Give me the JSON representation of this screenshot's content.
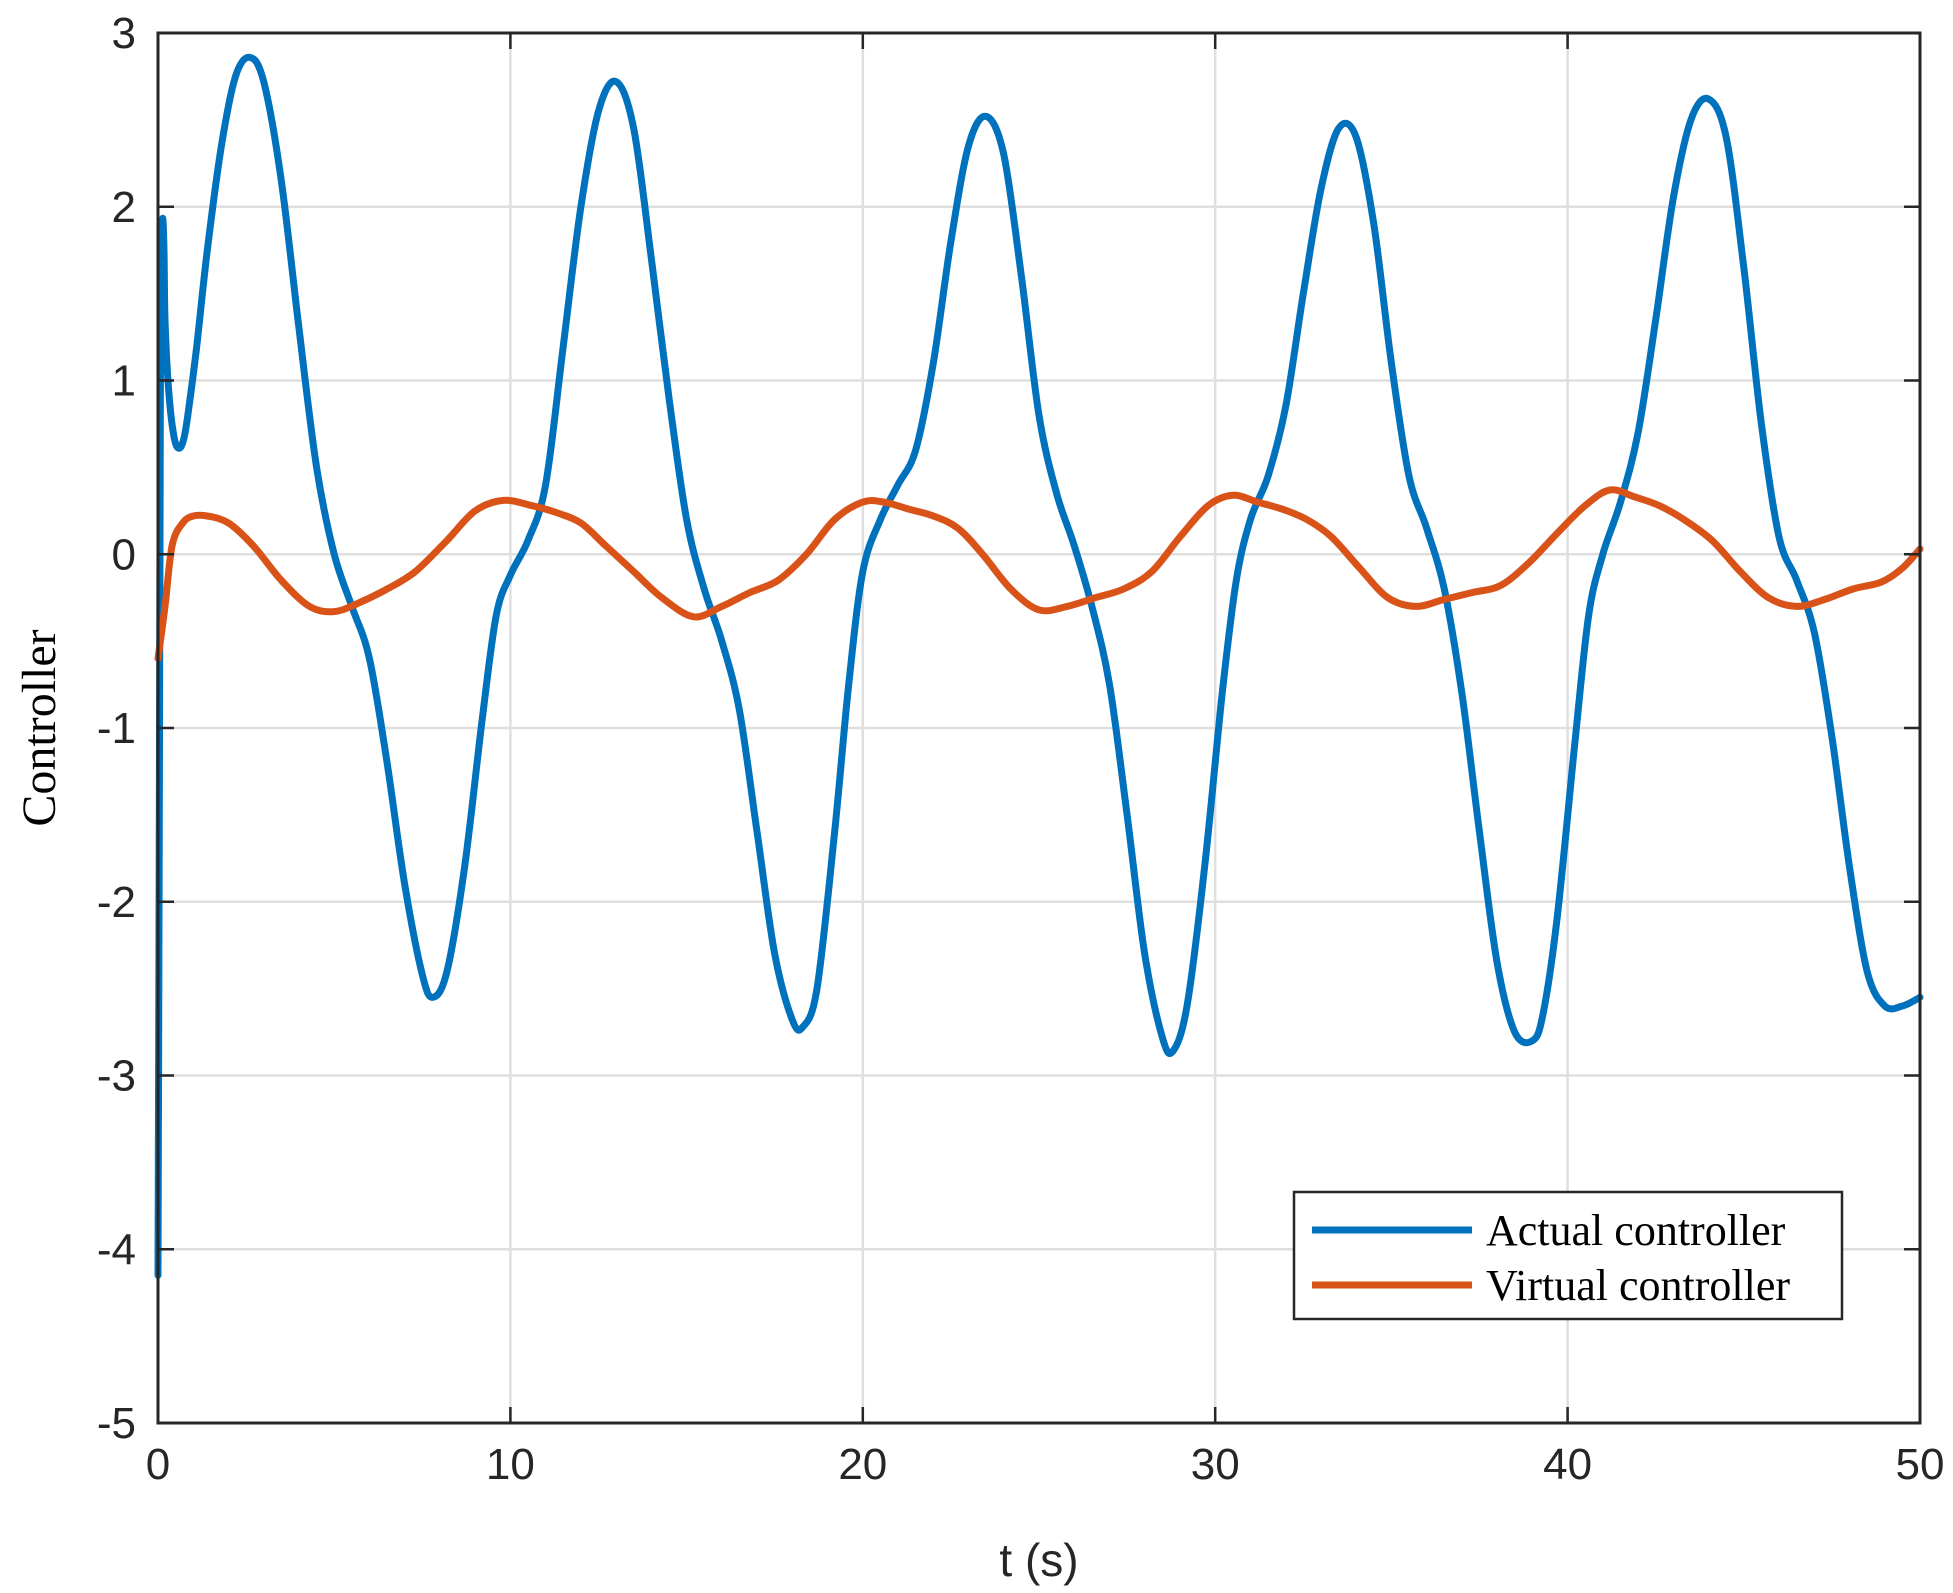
{
  "chart_data": {
    "type": "line",
    "title": "",
    "xlabel": "t (s)",
    "ylabel": "Controller",
    "xlim": [
      0,
      50
    ],
    "ylim": [
      -5,
      3
    ],
    "xticks": [
      0,
      10,
      20,
      30,
      40,
      50
    ],
    "yticks": [
      -5,
      -4,
      -3,
      -2,
      -1,
      0,
      1,
      2,
      3
    ],
    "grid": true,
    "legend_position": "bottom-right",
    "series": [
      {
        "name": "Actual controller",
        "color": "#0072BD",
        "x": [
          0,
          0.04,
          0.07,
          0.1,
          0.13,
          0.17,
          0.2,
          0.3,
          0.45,
          0.6,
          0.75,
          0.9,
          1.1,
          1.4,
          1.8,
          2.2,
          2.6,
          3.0,
          3.5,
          4.0,
          4.5,
          5.0,
          5.5,
          6.0,
          6.5,
          7.0,
          7.5,
          7.8,
          8.2,
          8.7,
          9.2,
          9.6,
          10.0,
          10.5,
          11.0,
          11.5,
          12.0,
          12.5,
          13.0,
          13.5,
          14.0,
          14.5,
          15.0,
          15.5,
          16.0,
          16.5,
          17.0,
          17.5,
          18.0,
          18.3,
          18.7,
          19.2,
          19.6,
          20.0,
          20.5,
          21.0,
          21.5,
          22.0,
          22.5,
          23.0,
          23.5,
          24.0,
          24.5,
          25.0,
          25.5,
          26.0,
          26.5,
          27.0,
          27.5,
          28.0,
          28.5,
          28.8,
          29.2,
          29.7,
          30.2,
          30.6,
          31.0,
          31.5,
          32.0,
          32.5,
          33.0,
          33.5,
          34.0,
          34.5,
          35.0,
          35.5,
          36.0,
          36.5,
          37.0,
          37.5,
          38.0,
          38.5,
          39.0,
          39.3,
          39.7,
          40.2,
          40.6,
          41.0,
          41.5,
          42.0,
          42.5,
          43.0,
          43.5,
          44.0,
          44.5,
          45.0,
          45.5,
          46.0,
          46.5,
          47.0,
          47.5,
          48.0,
          48.5,
          49.0,
          49.5,
          50.0
        ],
        "values": [
          -4.15,
          -1.3,
          1.2,
          1.6,
          1.93,
          1.75,
          1.35,
          0.95,
          0.68,
          0.61,
          0.68,
          0.88,
          1.2,
          1.75,
          2.35,
          2.75,
          2.86,
          2.72,
          2.15,
          1.3,
          0.5,
          0.0,
          -0.3,
          -0.6,
          -1.2,
          -1.9,
          -2.42,
          -2.55,
          -2.4,
          -1.8,
          -0.95,
          -0.35,
          -0.12,
          0.08,
          0.4,
          1.2,
          2.0,
          2.55,
          2.72,
          2.45,
          1.7,
          0.9,
          0.2,
          -0.2,
          -0.5,
          -0.9,
          -1.6,
          -2.3,
          -2.68,
          -2.72,
          -2.5,
          -1.6,
          -0.75,
          -0.1,
          0.2,
          0.4,
          0.6,
          1.1,
          1.8,
          2.35,
          2.52,
          2.3,
          1.6,
          0.8,
          0.35,
          0.05,
          -0.3,
          -0.75,
          -1.5,
          -2.3,
          -2.78,
          -2.86,
          -2.6,
          -1.8,
          -0.8,
          -0.15,
          0.2,
          0.45,
          0.85,
          1.5,
          2.1,
          2.45,
          2.4,
          1.9,
          1.1,
          0.45,
          0.15,
          -0.2,
          -0.8,
          -1.6,
          -2.35,
          -2.75,
          -2.8,
          -2.65,
          -2.1,
          -1.1,
          -0.35,
          0.0,
          0.3,
          0.7,
          1.35,
          2.05,
          2.5,
          2.62,
          2.4,
          1.65,
          0.75,
          0.1,
          -0.15,
          -0.45,
          -1.05,
          -1.8,
          -2.4,
          -2.6,
          -2.6,
          -2.55
        ]
      },
      {
        "name": "Virtual controller",
        "color": "#D95319",
        "x": [
          0,
          0.2,
          0.4,
          0.7,
          1.0,
          1.4,
          2.0,
          2.7,
          3.5,
          4.3,
          5.0,
          5.7,
          6.5,
          7.3,
          8.2,
          9.0,
          9.8,
          10.6,
          11.3,
          12.0,
          12.7,
          13.5,
          14.3,
          15.2,
          16.0,
          16.8,
          17.6,
          18.4,
          19.2,
          20.0,
          20.6,
          21.3,
          22.0,
          22.7,
          23.4,
          24.2,
          25.0,
          25.8,
          26.6,
          27.4,
          28.2,
          29.0,
          29.8,
          30.5,
          31.2,
          31.9,
          32.6,
          33.3,
          34.1,
          34.9,
          35.7,
          36.5,
          37.3,
          38.1,
          38.9,
          39.7,
          40.5,
          41.2,
          41.9,
          42.6,
          43.3,
          44.1,
          44.9,
          45.7,
          46.5,
          47.3,
          48.1,
          48.9,
          49.5,
          50.0
        ],
        "values": [
          -0.6,
          -0.3,
          0.05,
          0.18,
          0.22,
          0.22,
          0.18,
          0.05,
          -0.15,
          -0.3,
          -0.33,
          -0.28,
          -0.2,
          -0.1,
          0.08,
          0.25,
          0.31,
          0.28,
          0.24,
          0.18,
          0.05,
          -0.1,
          -0.25,
          -0.36,
          -0.3,
          -0.22,
          -0.15,
          0.0,
          0.2,
          0.3,
          0.3,
          0.26,
          0.22,
          0.15,
          0.0,
          -0.2,
          -0.32,
          -0.3,
          -0.25,
          -0.2,
          -0.1,
          0.1,
          0.28,
          0.34,
          0.3,
          0.26,
          0.2,
          0.1,
          -0.08,
          -0.25,
          -0.3,
          -0.26,
          -0.22,
          -0.18,
          -0.05,
          0.12,
          0.28,
          0.37,
          0.33,
          0.28,
          0.2,
          0.08,
          -0.1,
          -0.25,
          -0.3,
          -0.26,
          -0.2,
          -0.16,
          -0.08,
          0.03
        ]
      }
    ]
  }
}
